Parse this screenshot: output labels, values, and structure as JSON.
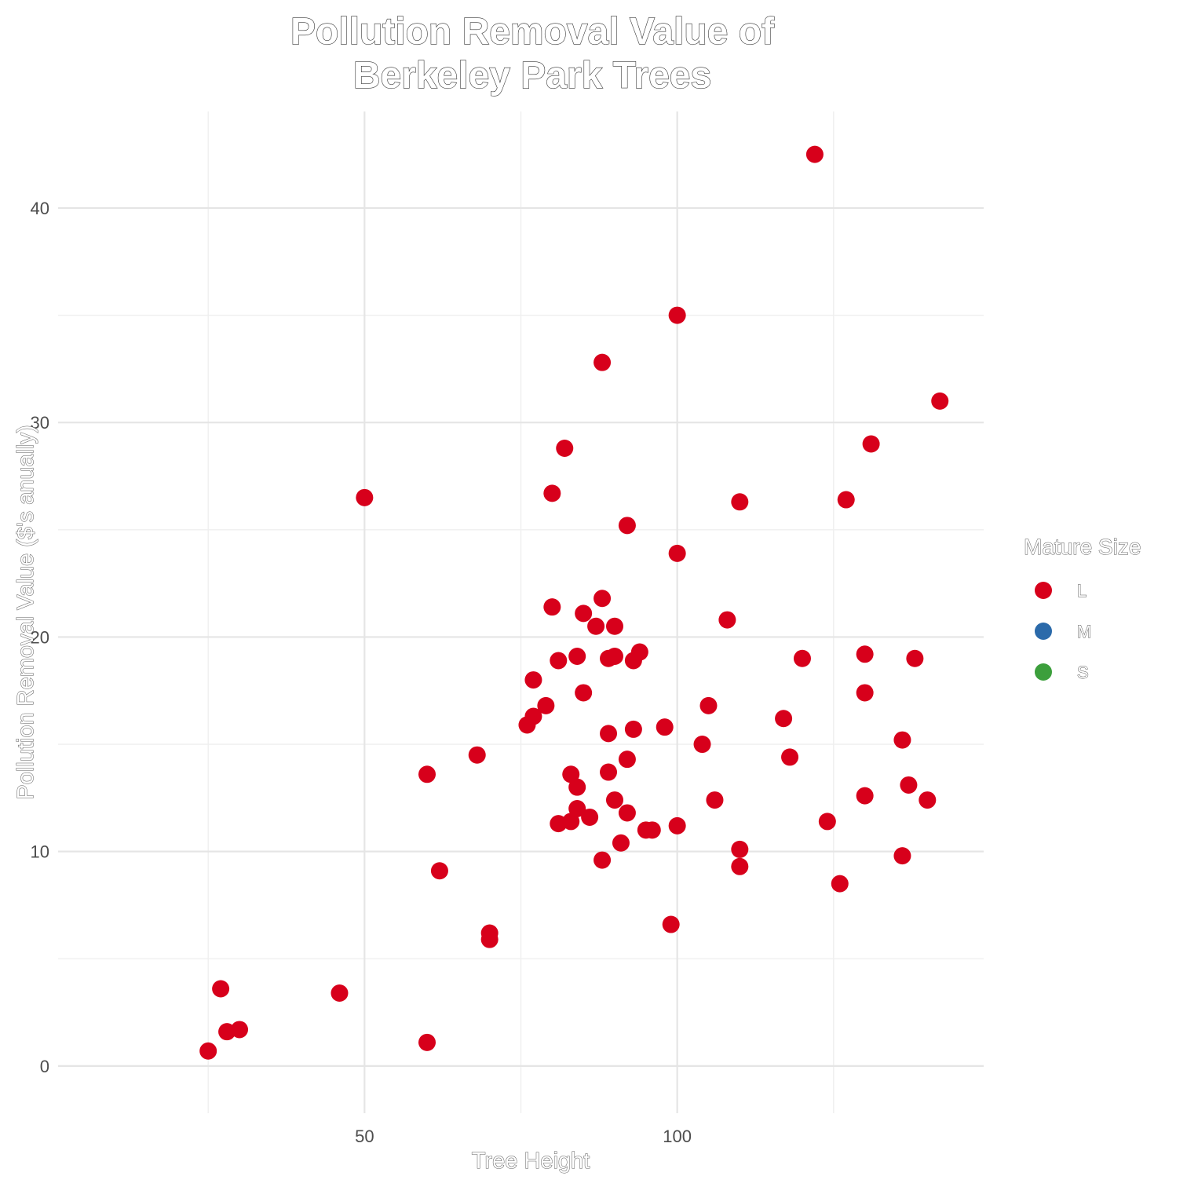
{
  "chart_data": {
    "type": "scatter",
    "title": [
      "Pollution Removal Value of",
      "Berkeley Park Trees"
    ],
    "xlabel": "Tree Height",
    "ylabel": "Pollution Removal Value ($'s anually)",
    "xlim": [
      1,
      149
    ],
    "ylim": [
      -2.2,
      44.5
    ],
    "x_ticks": [
      50,
      100
    ],
    "x_tick_labels": [
      "50",
      "100"
    ],
    "x_minor_ticks": [
      25,
      75,
      125
    ],
    "y_ticks": [
      0,
      10,
      20,
      30,
      40
    ],
    "y_tick_labels": [
      "0",
      "10",
      "20",
      "30",
      "40"
    ],
    "y_minor_ticks": [
      5,
      15,
      25,
      35
    ],
    "grid": true,
    "legend": {
      "title": "Mature Size",
      "placement": "right",
      "entries": [
        {
          "label": "L",
          "color": "#d7001b"
        },
        {
          "label": "M",
          "color": "#2b6aaa"
        },
        {
          "label": "S",
          "color": "#3c9f3c"
        }
      ]
    },
    "series": [
      {
        "name": "L",
        "color": "#d7001b",
        "points": [
          [
            25,
            0.7
          ],
          [
            27,
            3.6
          ],
          [
            28,
            1.6
          ],
          [
            30,
            1.7
          ],
          [
            46,
            3.4
          ],
          [
            60,
            1.1
          ],
          [
            50,
            26.5
          ],
          [
            60,
            13.6
          ],
          [
            62,
            9.1
          ],
          [
            68,
            14.5
          ],
          [
            70,
            6.2
          ],
          [
            70,
            5.9
          ],
          [
            76,
            15.9
          ],
          [
            77,
            16.3
          ],
          [
            77,
            18.0
          ],
          [
            79,
            16.8
          ],
          [
            80,
            26.7
          ],
          [
            80,
            21.4
          ],
          [
            81,
            18.9
          ],
          [
            81,
            11.3
          ],
          [
            82,
            28.8
          ],
          [
            83,
            13.6
          ],
          [
            83,
            11.4
          ],
          [
            84,
            13.0
          ],
          [
            84,
            12.0
          ],
          [
            84,
            19.1
          ],
          [
            85,
            21.1
          ],
          [
            85,
            17.4
          ],
          [
            86,
            11.6
          ],
          [
            87,
            20.5
          ],
          [
            88,
            32.8
          ],
          [
            88,
            21.8
          ],
          [
            88,
            9.6
          ],
          [
            89,
            19.0
          ],
          [
            89,
            15.5
          ],
          [
            89,
            13.7
          ],
          [
            90,
            20.5
          ],
          [
            90,
            19.1
          ],
          [
            90,
            12.4
          ],
          [
            91,
            10.4
          ],
          [
            92,
            25.2
          ],
          [
            92,
            14.3
          ],
          [
            92,
            11.8
          ],
          [
            93,
            18.9
          ],
          [
            93,
            15.7
          ],
          [
            94,
            19.3
          ],
          [
            95,
            11.0
          ],
          [
            96,
            11.0
          ],
          [
            98,
            15.8
          ],
          [
            99,
            6.6
          ],
          [
            100,
            35.0
          ],
          [
            100,
            23.9
          ],
          [
            100,
            11.2
          ],
          [
            104,
            15.0
          ],
          [
            105,
            16.8
          ],
          [
            106,
            12.4
          ],
          [
            108,
            20.8
          ],
          [
            110,
            26.3
          ],
          [
            110,
            10.1
          ],
          [
            110,
            9.3
          ],
          [
            117,
            16.2
          ],
          [
            118,
            14.4
          ],
          [
            120,
            19.0
          ],
          [
            122,
            42.5
          ],
          [
            124,
            11.4
          ],
          [
            126,
            8.5
          ],
          [
            127,
            26.4
          ],
          [
            130,
            19.2
          ],
          [
            130,
            17.4
          ],
          [
            130,
            12.6
          ],
          [
            131,
            29.0
          ],
          [
            136,
            15.2
          ],
          [
            136,
            9.8
          ],
          [
            137,
            13.1
          ],
          [
            138,
            19.0
          ],
          [
            140,
            12.4
          ],
          [
            142,
            31.0
          ]
        ]
      }
    ]
  }
}
